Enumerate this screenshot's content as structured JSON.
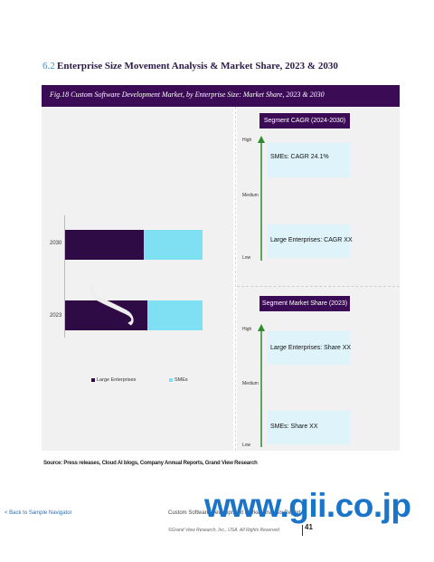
{
  "section": {
    "number": "6.2",
    "title": "Enterprise Size Movement Analysis & Market Share, 2023 & 2030"
  },
  "figure": {
    "caption": "Fig.18  Custom Software Development Market, by Enterprise Size: Market Share, 2023 & 2030"
  },
  "chart_data": {
    "type": "bar",
    "orientation": "horizontal",
    "stacked": true,
    "categories": [
      "2030",
      "2023"
    ],
    "series": [
      {
        "name": "Large Enterprises",
        "values": [
          57,
          60
        ],
        "color": "#2e0b45"
      },
      {
        "name": "SMEs",
        "values": [
          43,
          40
        ],
        "color": "#7fe0f3"
      }
    ],
    "xlim": [
      0,
      100
    ],
    "legend_position": "bottom"
  },
  "cagr_panel": {
    "header": "Segment CAGR (2024-2030)",
    "scale": {
      "high": "High",
      "medium": "Medium",
      "low": "Low"
    },
    "top_box": "SMEs: CAGR 24.1%",
    "bottom_box": "Large Enterprises: CAGR XX"
  },
  "share_panel": {
    "header": "Segment Market Share (2023)",
    "scale": {
      "high": "High",
      "medium": "Medium",
      "low": "Low"
    },
    "top_box": "Large Enterprises: Share XX",
    "bottom_box": "SMEs: Share XX"
  },
  "source": "Source: Press releases, Cloud AI blogs, Company Annual Reports, Grand View Research",
  "footer": {
    "back_link": "< Back to Sample Navigator",
    "report_title": "Custom Software Development Market Analysis Report",
    "copyright": "©Grand View Research, Inc., USA. All Rights Reserved",
    "page_number": "41"
  },
  "watermark": "www.gii.co.jp",
  "colors": {
    "header_purple": "#3b0b55",
    "box_light_blue": "#dff3fb",
    "arrow_green": "#2e8b2e",
    "watermark_blue": "#1a74c9"
  }
}
